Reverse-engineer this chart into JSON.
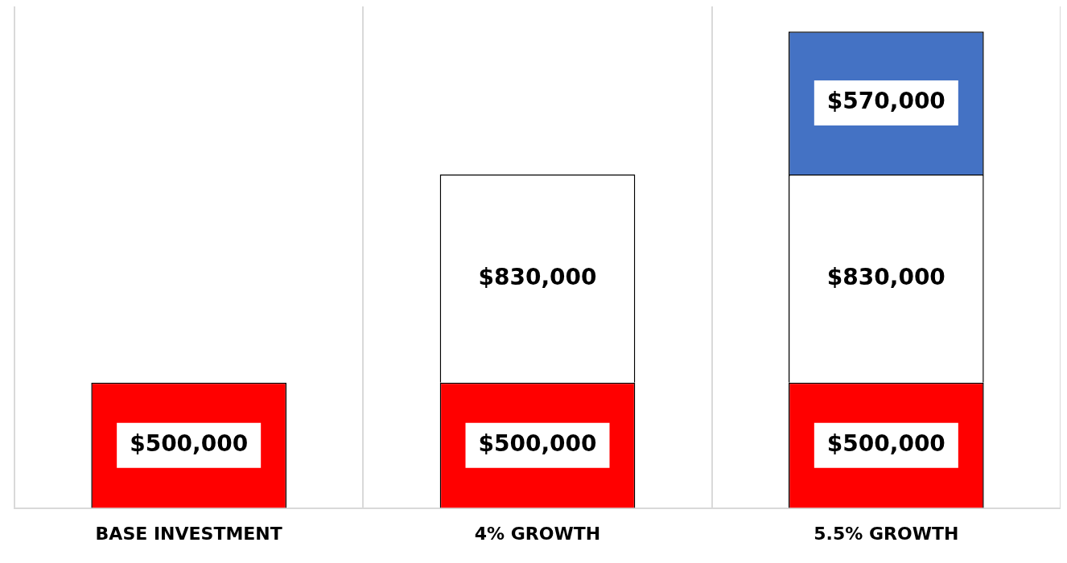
{
  "chart_data": {
    "type": "bar",
    "stacked": true,
    "tick_labels": "x",
    "grid": "x",
    "legend": false,
    "categories": [
      "BASE INVESTMENT",
      "4% GROWTH",
      "5.5% GROWTH"
    ],
    "series": [
      {
        "color": "#ff0000",
        "values": [
          500000,
          500000,
          500000
        ],
        "value_labels": [
          "$500,000",
          "$500,000",
          "$500,000"
        ]
      },
      {
        "color": "#ffffff",
        "values": [
          null,
          830000,
          830000
        ],
        "value_labels": [
          null,
          "$830,000",
          "$830,000"
        ]
      },
      {
        "color": "#4472c4",
        "values": [
          null,
          null,
          570000
        ],
        "value_labels": [
          null,
          null,
          "$570,000"
        ]
      }
    ]
  }
}
